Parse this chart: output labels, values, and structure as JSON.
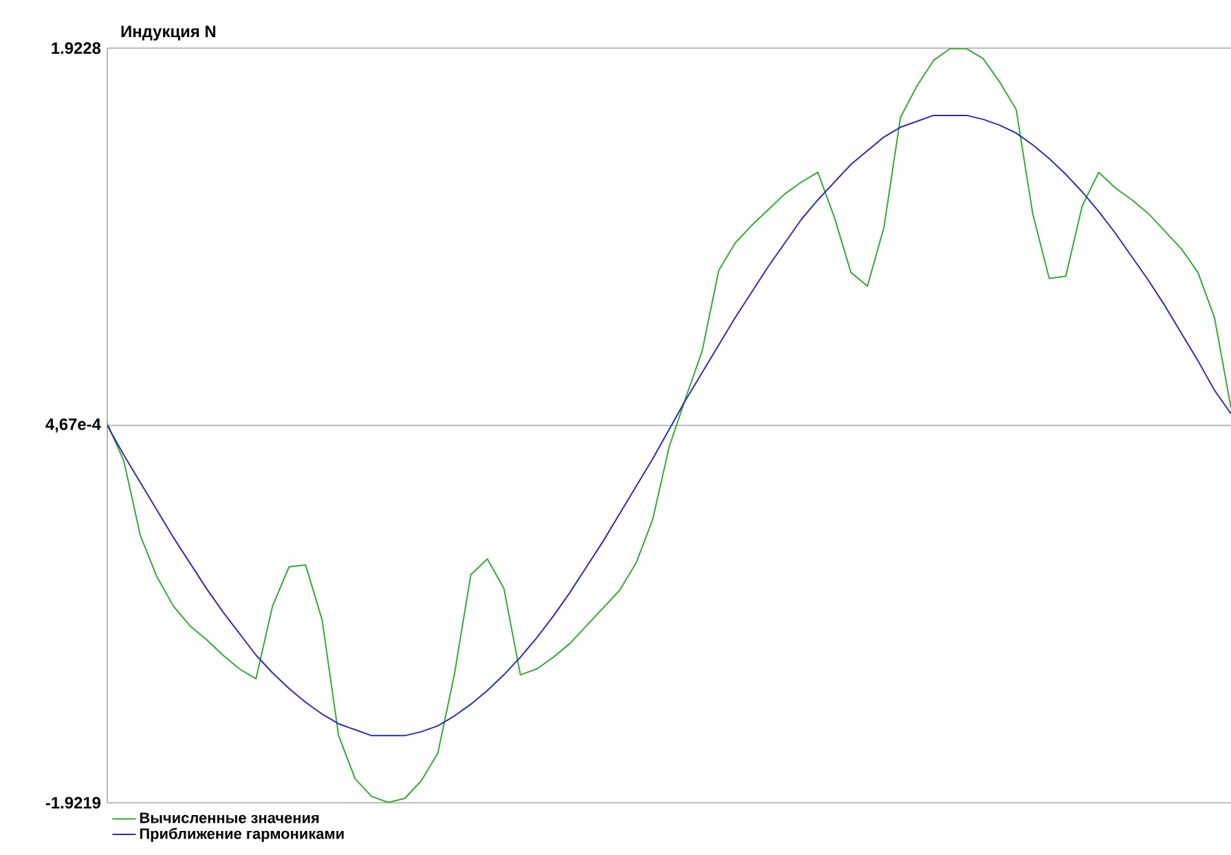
{
  "chart_data": {
    "type": "line",
    "ylabel": "Индукция N",
    "categories": [
      null,
      null,
      null,
      null,
      null,
      null,
      null,
      null,
      null,
      null,
      null,
      null,
      null,
      null,
      null,
      null,
      null,
      null,
      null,
      null,
      null,
      null,
      null,
      null,
      null,
      null,
      null,
      null,
      null,
      null,
      null,
      null,
      null,
      null,
      null,
      null,
      null,
      null,
      null,
      null,
      null,
      null,
      null,
      null,
      null,
      null,
      null,
      null,
      null,
      null,
      null,
      null,
      null,
      null,
      null,
      null,
      null,
      null,
      null,
      null,
      null,
      null,
      null,
      null,
      null,
      null,
      null,
      null,
      null
    ],
    "series": [
      {
        "name": "Вычисленные значения",
        "color": "#33aa33",
        "values": [
          0.01,
          -0.18,
          -0.56,
          -0.77,
          -0.92,
          -1.02,
          -1.09,
          -1.17,
          -1.24,
          -1.29,
          -0.92,
          -0.72,
          -0.71,
          -0.99,
          -1.58,
          -1.8,
          -1.89,
          -1.92,
          -1.9,
          -1.81,
          -1.67,
          -1.27,
          -0.76,
          -0.68,
          -0.83,
          -1.27,
          -1.24,
          -1.18,
          -1.11,
          -1.02,
          -0.93,
          -0.84,
          -0.7,
          -0.48,
          -0.11,
          0.14,
          0.38,
          0.79,
          0.93,
          1.02,
          1.1,
          1.18,
          1.24,
          1.29,
          1.06,
          0.78,
          0.71,
          1.01,
          1.57,
          1.73,
          1.86,
          1.92,
          1.92,
          1.87,
          1.75,
          1.61,
          1.08,
          0.75,
          0.76,
          1.12,
          1.29,
          1.21,
          1.15,
          1.08,
          0.99,
          0.9,
          0.78,
          0.55,
          0.09
        ]
      },
      {
        "name": "Приближение гармониками",
        "color": "#2b2bb3",
        "values": [
          0,
          -0.15,
          -0.29,
          -0.43,
          -0.57,
          -0.7,
          -0.83,
          -0.95,
          -1.06,
          -1.17,
          -1.26,
          -1.34,
          -1.41,
          -1.47,
          -1.52,
          -1.55,
          -1.58,
          -1.58,
          -1.58,
          -1.56,
          -1.53,
          -1.48,
          -1.42,
          -1.35,
          -1.27,
          -1.18,
          -1.08,
          -0.97,
          -0.85,
          -0.72,
          -0.59,
          -0.45,
          -0.31,
          -0.17,
          -0.02,
          0.13,
          0.27,
          0.41,
          0.55,
          0.68,
          0.81,
          0.93,
          1.05,
          1.15,
          1.24,
          1.33,
          1.4,
          1.47,
          1.52,
          1.55,
          1.58,
          1.58,
          1.58,
          1.56,
          1.53,
          1.49,
          1.43,
          1.36,
          1.28,
          1.19,
          1.09,
          0.98,
          0.86,
          0.74,
          0.61,
          0.47,
          0.33,
          0.18,
          0.06
        ]
      }
    ],
    "ylim": [
      -1.9219,
      1.9228
    ],
    "yticks": [
      -1.9219,
      {
        "value": 0.000467,
        "label": "4,67e-4"
      },
      1.9228
    ],
    "grid": "y",
    "legend": "bottom",
    "tick_labels": "y",
    "marker": "none",
    "line_style": "solid"
  }
}
